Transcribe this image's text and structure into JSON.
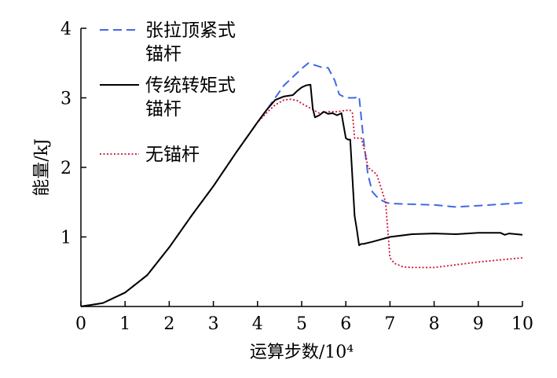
{
  "chart_data": {
    "type": "line",
    "xlabel": "运算步数/10⁴",
    "ylabel": "能量/kJ",
    "xlim": [
      0,
      10
    ],
    "ylim": [
      0,
      4
    ],
    "xticks": [
      "0",
      "1",
      "2",
      "3",
      "4",
      "5",
      "6",
      "7",
      "8",
      "9",
      "10"
    ],
    "yticks": [
      "1",
      "2",
      "3",
      "4"
    ],
    "grid": false,
    "legend_position": "top-left",
    "series": [
      {
        "name": "张拉顶紧式锚杆",
        "name_lines": [
          "张拉顶紧式",
          "锚杆"
        ],
        "color": "#4169e1",
        "style": "dashed",
        "x": [
          0,
          0.5,
          1.0,
          1.5,
          2.0,
          2.5,
          3.0,
          3.5,
          4.0,
          4.2,
          4.4,
          4.6,
          4.8,
          5.0,
          5.15,
          5.3,
          5.45,
          5.6,
          5.75,
          5.85,
          6.0,
          6.2,
          6.3,
          6.4,
          6.5,
          6.6,
          6.7,
          6.8,
          6.9,
          7.0,
          7.5,
          8.0,
          8.5,
          9.0,
          9.5,
          10.0
        ],
        "values": [
          0,
          0.05,
          0.2,
          0.45,
          0.85,
          1.3,
          1.73,
          2.2,
          2.65,
          2.82,
          3.0,
          3.18,
          3.3,
          3.42,
          3.5,
          3.47,
          3.44,
          3.43,
          3.25,
          3.05,
          3.0,
          3.0,
          3.02,
          2.4,
          1.9,
          1.65,
          1.58,
          1.53,
          1.5,
          1.48,
          1.47,
          1.46,
          1.43,
          1.45,
          1.47,
          1.49
        ]
      },
      {
        "name": "传统转矩式锚杆",
        "name_lines": [
          "传统转矩式",
          "锚杆"
        ],
        "color": "#000000",
        "style": "solid",
        "x": [
          0,
          0.5,
          1.0,
          1.5,
          2.0,
          2.5,
          3.0,
          3.5,
          4.0,
          4.2,
          4.4,
          4.6,
          4.8,
          4.9,
          5.0,
          5.1,
          5.2,
          5.25,
          5.3,
          5.4,
          5.5,
          5.6,
          5.7,
          5.8,
          5.9,
          6.0,
          6.05,
          6.1,
          6.2,
          6.25,
          6.3,
          6.35,
          6.4,
          6.6,
          7.0,
          7.5,
          8.0,
          8.5,
          9.0,
          9.5,
          9.6,
          9.7,
          10.0
        ],
        "values": [
          0,
          0.05,
          0.2,
          0.45,
          0.85,
          1.3,
          1.73,
          2.2,
          2.65,
          2.82,
          2.97,
          3.02,
          3.04,
          3.1,
          3.15,
          3.18,
          3.19,
          2.85,
          2.72,
          2.75,
          2.8,
          2.77,
          2.78,
          2.75,
          2.78,
          2.42,
          2.4,
          2.4,
          1.3,
          1.1,
          0.88,
          0.9,
          0.9,
          0.93,
          1.0,
          1.04,
          1.05,
          1.04,
          1.06,
          1.06,
          1.03,
          1.05,
          1.03
        ]
      },
      {
        "name": "无锚杆",
        "name_lines": [
          "无锚杆"
        ],
        "color": "#cc1133",
        "style": "dotted",
        "x": [
          0,
          0.5,
          1.0,
          1.5,
          2.0,
          2.5,
          3.0,
          3.5,
          4.0,
          4.2,
          4.4,
          4.6,
          4.75,
          4.9,
          5.0,
          5.2,
          5.4,
          5.6,
          5.8,
          6.0,
          6.1,
          6.15,
          6.2,
          6.35,
          6.45,
          6.5,
          6.6,
          6.7,
          6.8,
          6.9,
          7.0,
          7.1,
          7.3,
          7.5,
          8.0,
          8.5,
          9.0,
          9.5,
          10.0
        ],
        "values": [
          0,
          0.05,
          0.2,
          0.45,
          0.85,
          1.3,
          1.73,
          2.2,
          2.65,
          2.78,
          2.9,
          2.97,
          2.98,
          2.96,
          2.92,
          2.85,
          2.78,
          2.8,
          2.8,
          2.82,
          2.82,
          2.78,
          2.42,
          2.42,
          2.18,
          2.0,
          1.95,
          1.9,
          1.7,
          1.5,
          0.7,
          0.62,
          0.57,
          0.56,
          0.56,
          0.6,
          0.64,
          0.67,
          0.7
        ]
      }
    ]
  }
}
